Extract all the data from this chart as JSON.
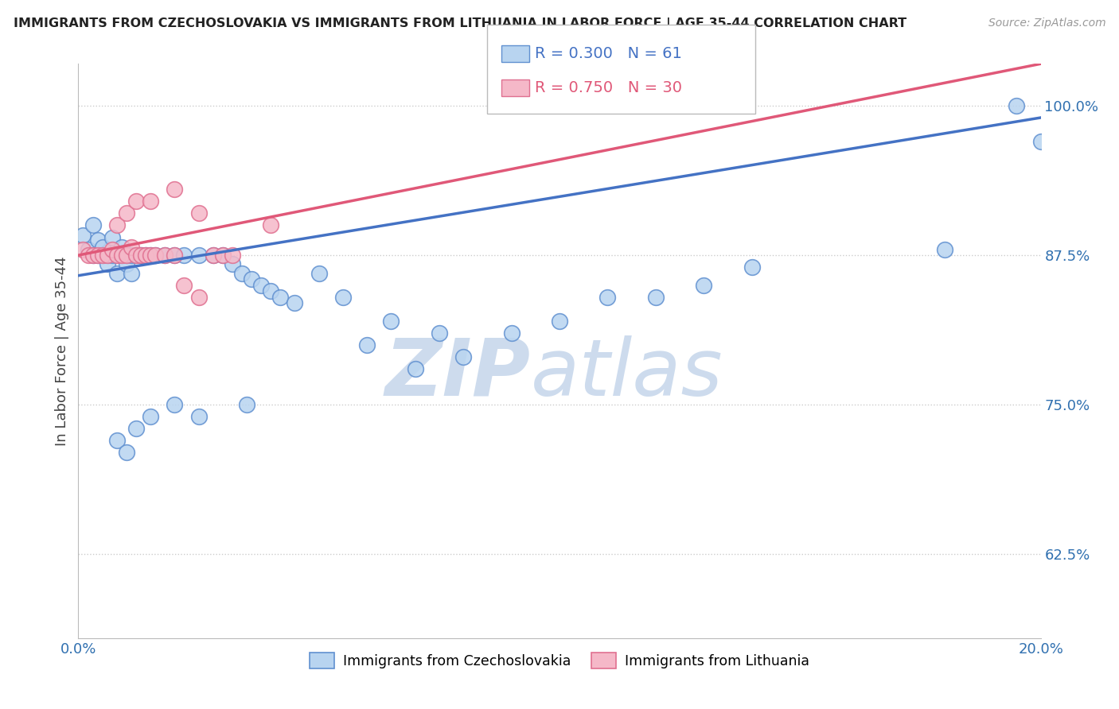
{
  "title": "IMMIGRANTS FROM CZECHOSLOVAKIA VS IMMIGRANTS FROM LITHUANIA IN LABOR FORCE | AGE 35-44 CORRELATION CHART",
  "source": "Source: ZipAtlas.com",
  "ylabel": "In Labor Force | Age 35-44",
  "xlim": [
    0.0,
    0.2
  ],
  "ylim": [
    0.555,
    1.035
  ],
  "yticks": [
    0.625,
    0.75,
    0.875,
    1.0
  ],
  "ytick_labels": [
    "62.5%",
    "75.0%",
    "87.5%",
    "100.0%"
  ],
  "xticks": [
    0.0,
    0.2
  ],
  "xtick_labels": [
    "0.0%",
    "20.0%"
  ],
  "blue_R": 0.3,
  "blue_N": 61,
  "pink_R": 0.75,
  "pink_N": 30,
  "blue_color": "#b8d4f0",
  "blue_edge_color": "#6090d0",
  "blue_line_color": "#4472c4",
  "pink_color": "#f5b8c8",
  "pink_edge_color": "#e07090",
  "pink_line_color": "#e05878",
  "watermark_zip": "ZIP",
  "watermark_atlas": "atlas",
  "watermark_color": "#c8d8ec",
  "background_color": "#ffffff",
  "grid_color": "#cccccc",
  "blue_x": [
    0.001,
    0.002,
    0.003,
    0.003,
    0.004,
    0.004,
    0.005,
    0.005,
    0.006,
    0.006,
    0.007,
    0.007,
    0.008,
    0.008,
    0.009,
    0.009,
    0.01,
    0.01,
    0.011,
    0.011,
    0.012,
    0.013,
    0.014,
    0.015,
    0.016,
    0.018,
    0.02,
    0.022,
    0.025,
    0.028,
    0.03,
    0.032,
    0.034,
    0.036,
    0.038,
    0.04,
    0.042,
    0.045,
    0.05,
    0.055,
    0.06,
    0.065,
    0.07,
    0.075,
    0.08,
    0.09,
    0.1,
    0.11,
    0.12,
    0.13,
    0.14,
    0.008,
    0.01,
    0.012,
    0.015,
    0.02,
    0.025,
    0.035,
    0.18,
    0.195,
    0.2
  ],
  "blue_y": [
    0.892,
    0.88,
    0.875,
    0.9,
    0.875,
    0.888,
    0.875,
    0.882,
    0.875,
    0.868,
    0.875,
    0.89,
    0.875,
    0.86,
    0.875,
    0.882,
    0.875,
    0.868,
    0.875,
    0.86,
    0.875,
    0.875,
    0.875,
    0.875,
    0.875,
    0.875,
    0.875,
    0.875,
    0.875,
    0.875,
    0.875,
    0.868,
    0.86,
    0.855,
    0.85,
    0.845,
    0.84,
    0.835,
    0.86,
    0.84,
    0.8,
    0.82,
    0.78,
    0.81,
    0.79,
    0.81,
    0.82,
    0.84,
    0.84,
    0.85,
    0.865,
    0.72,
    0.71,
    0.73,
    0.74,
    0.75,
    0.74,
    0.75,
    0.88,
    1.0,
    0.97
  ],
  "pink_x": [
    0.001,
    0.002,
    0.003,
    0.004,
    0.005,
    0.006,
    0.007,
    0.008,
    0.009,
    0.01,
    0.011,
    0.012,
    0.013,
    0.014,
    0.015,
    0.016,
    0.018,
    0.02,
    0.022,
    0.025,
    0.028,
    0.03,
    0.032,
    0.008,
    0.01,
    0.012,
    0.015,
    0.02,
    0.025,
    0.04
  ],
  "pink_y": [
    0.88,
    0.875,
    0.875,
    0.875,
    0.875,
    0.875,
    0.88,
    0.875,
    0.875,
    0.875,
    0.882,
    0.875,
    0.875,
    0.875,
    0.875,
    0.875,
    0.875,
    0.875,
    0.85,
    0.84,
    0.875,
    0.875,
    0.875,
    0.9,
    0.91,
    0.92,
    0.92,
    0.93,
    0.91,
    0.9
  ],
  "blue_line": [
    [
      0.0,
      0.2
    ],
    [
      0.858,
      0.99
    ]
  ],
  "pink_line": [
    [
      0.0,
      0.2
    ],
    [
      0.875,
      1.035
    ]
  ]
}
